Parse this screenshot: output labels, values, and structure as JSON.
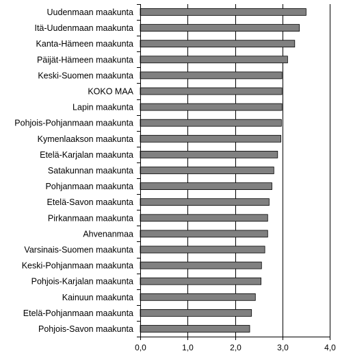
{
  "chart_data": {
    "type": "bar",
    "orientation": "horizontal",
    "categories": [
      "Uudenmaan maakunta",
      "Itä-Uudenmaan maakunta",
      "Kanta-Hämeen maakunta",
      "Päijät-Hämeen maakunta",
      "Keski-Suomen maakunta",
      "KOKO MAA",
      "Lapin maakunta",
      "Pohjois-Pohjanmaan maakunta",
      "Kymenlaakson maakunta",
      "Etelä-Karjalan maakunta",
      "Satakunnan maakunta",
      "Pohjanmaan maakunta",
      "Etelä-Savon maakunta",
      "Pirkanmaan maakunta",
      "Ahvenanmaa",
      "Varsinais-Suomen maakunta",
      "Keski-Pohjanmaan maakunta",
      "Pohjois-Karjalan maakunta",
      "Kainuun maakunta",
      "Etelä-Pohjanmaan maakunta",
      "Pohjois-Savon maakunta"
    ],
    "values": [
      3.5,
      3.36,
      3.26,
      3.11,
      2.99,
      2.99,
      2.99,
      2.98,
      2.97,
      2.9,
      2.82,
      2.78,
      2.72,
      2.69,
      2.69,
      2.63,
      2.56,
      2.55,
      2.43,
      2.35,
      2.31
    ],
    "xlim": [
      0,
      4
    ],
    "xticks": [
      "0,0",
      "1,0",
      "2,0",
      "3,0",
      "4,0"
    ],
    "grid": true,
    "bar_color": "#808080",
    "title": "",
    "xlabel": "",
    "ylabel": ""
  }
}
